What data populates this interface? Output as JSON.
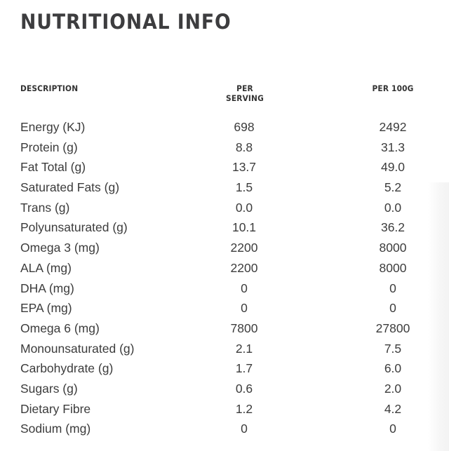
{
  "title": "NUTRITIONAL INFO",
  "table": {
    "headers": {
      "description": "DESCRIPTION",
      "per_serving": "PER SERVING",
      "per_100g": "PER 100G"
    },
    "rows": [
      {
        "description": "Energy (KJ)",
        "per_serving": "698",
        "per_100g": "2492"
      },
      {
        "description": "Protein (g)",
        "per_serving": "8.8",
        "per_100g": "31.3"
      },
      {
        "description": "Fat Total (g)",
        "per_serving": "13.7",
        "per_100g": "49.0"
      },
      {
        "description": "Saturated Fats (g)",
        "per_serving": "1.5",
        "per_100g": "5.2"
      },
      {
        "description": "Trans (g)",
        "per_serving": "0.0",
        "per_100g": "0.0"
      },
      {
        "description": "Polyunsaturated (g)",
        "per_serving": "10.1",
        "per_100g": "36.2"
      },
      {
        "description": "Omega 3 (mg)",
        "per_serving": "2200",
        "per_100g": "8000"
      },
      {
        "description": "ALA (mg)",
        "per_serving": "2200",
        "per_100g": "8000"
      },
      {
        "description": "DHA (mg)",
        "per_serving": "0",
        "per_100g": "0"
      },
      {
        "description": "EPA (mg)",
        "per_serving": "0",
        "per_100g": "0"
      },
      {
        "description": "Omega 6 (mg)",
        "per_serving": "7800",
        "per_100g": "27800"
      },
      {
        "description": "Monounsaturated (g)",
        "per_serving": "2.1",
        "per_100g": "7.5"
      },
      {
        "description": "Carbohydrate (g)",
        "per_serving": "1.7",
        "per_100g": "6.0"
      },
      {
        "description": "Sugars (g)",
        "per_serving": "0.6",
        "per_100g": "2.0"
      },
      {
        "description": "Dietary Fibre",
        "per_serving": "1.2",
        "per_100g": "4.2"
      },
      {
        "description": "Sodium (mg)",
        "per_serving": "0",
        "per_100g": "0"
      }
    ]
  }
}
